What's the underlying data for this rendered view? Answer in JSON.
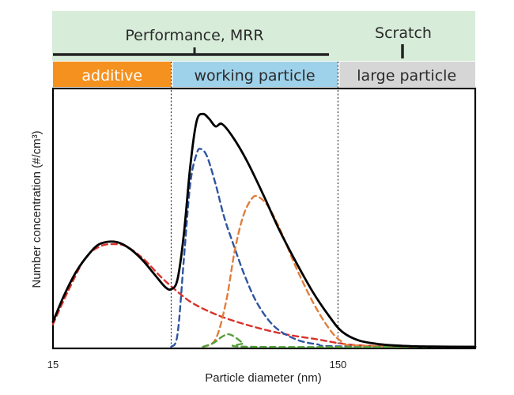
{
  "chart_data": {
    "type": "line",
    "xlabel": "Particle diameter (nm)",
    "ylabel": "Number concentration (#/cm³)",
    "x_ticks": [
      "15",
      "150"
    ],
    "xlim": [
      15,
      215
    ],
    "ylim": [
      0,
      1.0
    ],
    "x_ticks_values": [
      15,
      150
    ],
    "header": {
      "performance_label": "Performance, MRR",
      "scratch_label": "Scratch",
      "colors": {
        "background": "#d7ecd9"
      }
    },
    "zones": [
      {
        "label": "additive",
        "from": 15,
        "to": 71,
        "color": "#f5911e",
        "text_color": "#ffffff"
      },
      {
        "label": "working particle",
        "from": 71,
        "to": 150,
        "color": "#9ed1ea",
        "text_color": "#2b2b2b"
      },
      {
        "label": "large particle",
        "from": 150,
        "to": 215,
        "color": "#d6d6d6",
        "text_color": "#2b2b2b"
      }
    ],
    "boundaries": [
      71,
      150
    ],
    "series": [
      {
        "style": "solid",
        "color": "#000000",
        "points": [
          [
            15,
            0.1
          ],
          [
            20,
            0.2
          ],
          [
            26,
            0.3
          ],
          [
            32,
            0.37
          ],
          [
            37,
            0.41
          ],
          [
            44,
            0.42
          ],
          [
            50,
            0.4
          ],
          [
            57,
            0.35
          ],
          [
            63,
            0.29
          ],
          [
            68,
            0.24
          ],
          [
            71,
            0.23
          ],
          [
            74,
            0.27
          ],
          [
            77,
            0.45
          ],
          [
            80,
            0.72
          ],
          [
            83,
            0.9
          ],
          [
            86,
            0.93
          ],
          [
            89,
            0.91
          ],
          [
            92,
            0.88
          ],
          [
            95,
            0.89
          ],
          [
            100,
            0.84
          ],
          [
            107,
            0.74
          ],
          [
            115,
            0.6
          ],
          [
            122,
            0.47
          ],
          [
            130,
            0.34
          ],
          [
            138,
            0.22
          ],
          [
            146,
            0.12
          ],
          [
            152,
            0.06
          ],
          [
            160,
            0.025
          ],
          [
            170,
            0.01
          ],
          [
            180,
            0.004
          ],
          [
            195,
            0.001
          ],
          [
            215,
            0.0
          ]
        ]
      },
      {
        "style": "dashed",
        "color": "#d9312b",
        "points": [
          [
            15,
            0.09
          ],
          [
            22,
            0.22
          ],
          [
            30,
            0.35
          ],
          [
            37,
            0.4
          ],
          [
            44,
            0.41
          ],
          [
            50,
            0.4
          ],
          [
            58,
            0.35
          ],
          [
            66,
            0.28
          ],
          [
            74,
            0.22
          ],
          [
            82,
            0.17
          ],
          [
            95,
            0.12
          ],
          [
            110,
            0.08
          ],
          [
            125,
            0.05
          ],
          [
            140,
            0.03
          ],
          [
            150,
            0.015
          ],
          [
            160,
            0.006
          ],
          [
            175,
            0.002
          ],
          [
            215,
            0.0
          ]
        ]
      },
      {
        "style": "dashed",
        "color": "#2e55a0",
        "points": [
          [
            71,
            0.0
          ],
          [
            74,
            0.05
          ],
          [
            77,
            0.35
          ],
          [
            80,
            0.65
          ],
          [
            83,
            0.77
          ],
          [
            85,
            0.79
          ],
          [
            88,
            0.76
          ],
          [
            92,
            0.65
          ],
          [
            96,
            0.52
          ],
          [
            100,
            0.42
          ],
          [
            106,
            0.28
          ],
          [
            112,
            0.17
          ],
          [
            120,
            0.08
          ],
          [
            130,
            0.03
          ],
          [
            140,
            0.01
          ],
          [
            150,
            0.002
          ],
          [
            215,
            0.0
          ]
        ]
      },
      {
        "style": "dashed",
        "color": "#e07e3c",
        "points": [
          [
            86,
            0.0
          ],
          [
            92,
            0.03
          ],
          [
            97,
            0.18
          ],
          [
            101,
            0.38
          ],
          [
            105,
            0.52
          ],
          [
            109,
            0.59
          ],
          [
            112,
            0.6
          ],
          [
            117,
            0.56
          ],
          [
            123,
            0.46
          ],
          [
            130,
            0.32
          ],
          [
            138,
            0.18
          ],
          [
            146,
            0.07
          ],
          [
            152,
            0.02
          ],
          [
            160,
            0.005
          ],
          [
            215,
            0.0
          ]
        ]
      },
      {
        "style": "dashed",
        "color": "#55a03c",
        "points": [
          [
            86,
            0.0
          ],
          [
            91,
            0.015
          ],
          [
            95,
            0.04
          ],
          [
            98,
            0.05
          ],
          [
            101,
            0.04
          ],
          [
            105,
            0.015
          ],
          [
            109,
            0.0
          ],
          [
            215,
            0.0
          ]
        ]
      }
    ]
  }
}
